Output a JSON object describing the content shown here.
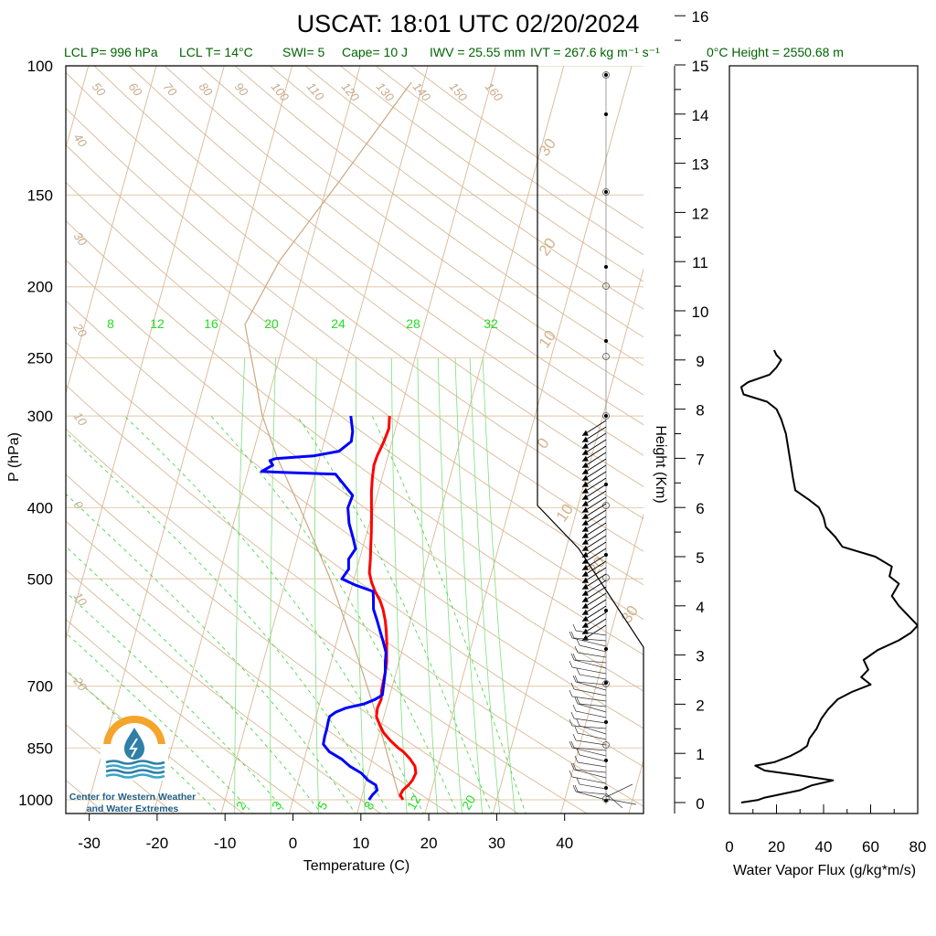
{
  "chart_data": [
    {
      "type": "line",
      "subtype": "skew-t log-p sounding",
      "title": "USCAT: 18:01 UTC 02/20/2024",
      "subtitle_items": [
        "LCL P= 996 hPa",
        "LCL T= 14°C",
        "SWI= 5",
        "Cape= 10 J",
        "IWV = 25.55 mm",
        "IVT = 267.6 kg m⁻¹ s⁻¹",
        "0°C Height = 2550.68 m"
      ],
      "xlabel": "Temperature (C)",
      "ylabel": "P (hPa)",
      "ylabel_right": "Height (Km)",
      "x_ticks": [
        "-30",
        "-20",
        "-10",
        "0",
        "10",
        "20",
        "30",
        "40"
      ],
      "y_ticks": [
        "100",
        "150",
        "200",
        "250",
        "300",
        "400",
        "500",
        "700",
        "850",
        "1000"
      ],
      "height_ticks": [
        "0",
        "1",
        "2",
        "3",
        "4",
        "5",
        "6",
        "7",
        "8",
        "9",
        "10",
        "11",
        "12",
        "13",
        "14",
        "15",
        "16"
      ],
      "mixing_ratio_labels_top": [
        "8",
        "12",
        "16",
        "20",
        "24",
        "28",
        "32"
      ],
      "mixing_ratio_labels_bottom": [
        "2",
        "3",
        "5",
        "8",
        "12",
        "20"
      ],
      "dry_adiabat_labels": [
        "50",
        "60",
        "70",
        "80",
        "90",
        "100",
        "110",
        "120",
        "130",
        "140",
        "150",
        "160"
      ],
      "isotherm_labels_left": [
        "40",
        "30",
        "20",
        "10",
        "0",
        "10",
        "20"
      ],
      "isotherm_labels_right": [
        "30",
        "20",
        "10",
        "0",
        "10",
        "20",
        "30"
      ],
      "xlim": [
        -35,
        50
      ],
      "ylim_hPa": [
        1050,
        100
      ],
      "log_y": true,
      "series": [
        {
          "color": "#ff0000",
          "points": [
            [
              1000,
              16.2
            ],
            [
              985,
              15.6
            ],
            [
              970,
              15.8
            ],
            [
              955,
              16.4
            ],
            [
              940,
              16.8
            ],
            [
              920,
              17.0
            ],
            [
              900,
              16.6
            ],
            [
              880,
              15.6
            ],
            [
              860,
              14.3
            ],
            [
              850,
              13.4
            ],
            [
              830,
              11.9
            ],
            [
              810,
              10.6
            ],
            [
              790,
              9.7
            ],
            [
              770,
              8.9
            ],
            [
              750,
              8.7
            ],
            [
              730,
              8.9
            ],
            [
              710,
              8.6
            ],
            [
              690,
              8.5
            ],
            [
              670,
              8.4
            ],
            [
              650,
              8.2
            ],
            [
              630,
              7.8
            ],
            [
              610,
              7.4
            ],
            [
              590,
              6.9
            ],
            [
              570,
              6.3
            ],
            [
              550,
              5.5
            ],
            [
              535,
              4.7
            ],
            [
              520,
              3.6
            ],
            [
              505,
              2.7
            ],
            [
              490,
              2.0
            ],
            [
              470,
              1.6
            ],
            [
              450,
              1.1
            ],
            [
              430,
              0.6
            ],
            [
              410,
              0.0
            ],
            [
              395,
              -0.5
            ],
            [
              380,
              -1.0
            ],
            [
              365,
              -1.4
            ],
            [
              350,
              -1.7
            ],
            [
              340,
              -1.6
            ],
            [
              325,
              -1.2
            ],
            [
              312,
              -1.0
            ],
            [
              300,
              -1.4
            ]
          ]
        },
        {
          "color": "#0000ff",
          "points": [
            [
              1000,
              11.2
            ],
            [
              985,
              11.5
            ],
            [
              970,
              12.0
            ],
            [
              955,
              11.6
            ],
            [
              940,
              10.2
            ],
            [
              920,
              9.0
            ],
            [
              900,
              7.0
            ],
            [
              880,
              5.5
            ],
            [
              860,
              3.4
            ],
            [
              840,
              2.2
            ],
            [
              820,
              2.1
            ],
            [
              800,
              2.1
            ],
            [
              780,
              2.0
            ],
            [
              770,
              2.0
            ],
            [
              760,
              2.7
            ],
            [
              750,
              4.0
            ],
            [
              740,
              6.6
            ],
            [
              730,
              8.0
            ],
            [
              720,
              8.9
            ],
            [
              710,
              8.8
            ],
            [
              690,
              8.6
            ],
            [
              670,
              8.4
            ],
            [
              650,
              8.0
            ],
            [
              630,
              7.7
            ],
            [
              610,
              6.9
            ],
            [
              590,
              6.0
            ],
            [
              570,
              5.1
            ],
            [
              550,
              4.1
            ],
            [
              530,
              3.6
            ],
            [
              520,
              3.3
            ],
            [
              510,
              0.5
            ],
            [
              500,
              -1.8
            ],
            [
              485,
              -1.2
            ],
            [
              470,
              -1.6
            ],
            [
              455,
              -1.0
            ],
            [
              440,
              -1.8
            ],
            [
              420,
              -3.0
            ],
            [
              400,
              -3.8
            ],
            [
              385,
              -3.6
            ],
            [
              370,
              -5.6
            ],
            [
              360,
              -7.0
            ],
            [
              358,
              -15.0
            ],
            [
              357,
              -18.0
            ],
            [
              350,
              -16.6
            ],
            [
              345,
              -17.2
            ],
            [
              343,
              -16.5
            ],
            [
              340,
              -11.0
            ],
            [
              335,
              -7.4
            ],
            [
              325,
              -6.0
            ],
            [
              315,
              -6.2
            ],
            [
              305,
              -6.8
            ],
            [
              300,
              -7.1
            ]
          ]
        }
      ],
      "wind_flux_profile": {
        "xlabel": "Water Vapor Flux (g/kg*m/s)",
        "x_ticks": [
          "0",
          "20",
          "40",
          "60",
          "80"
        ],
        "xlim": [
          0,
          80
        ],
        "ylim_km": [
          -0.3,
          16.5
        ],
        "points": [
          [
            0.0,
            5
          ],
          [
            0.05,
            12
          ],
          [
            0.1,
            15
          ],
          [
            0.25,
            30
          ],
          [
            0.35,
            35
          ],
          [
            0.45,
            44
          ],
          [
            0.55,
            30
          ],
          [
            0.65,
            15
          ],
          [
            0.75,
            11
          ],
          [
            0.82,
            19
          ],
          [
            0.95,
            26
          ],
          [
            1.05,
            30
          ],
          [
            1.15,
            33
          ],
          [
            1.3,
            34
          ],
          [
            1.5,
            37
          ],
          [
            1.7,
            39
          ],
          [
            1.9,
            42
          ],
          [
            2.1,
            46
          ],
          [
            2.25,
            52
          ],
          [
            2.4,
            60
          ],
          [
            2.55,
            56
          ],
          [
            2.7,
            59
          ],
          [
            2.9,
            57
          ],
          [
            3.1,
            63
          ],
          [
            3.3,
            72
          ],
          [
            3.45,
            77
          ],
          [
            3.6,
            80
          ],
          [
            3.8,
            76
          ],
          [
            4.0,
            72
          ],
          [
            4.2,
            69
          ],
          [
            4.45,
            72
          ],
          [
            4.6,
            68
          ],
          [
            4.8,
            69
          ],
          [
            5.0,
            62
          ],
          [
            5.2,
            48
          ],
          [
            5.4,
            45
          ],
          [
            5.6,
            41
          ],
          [
            5.8,
            40
          ],
          [
            6.0,
            38
          ],
          [
            6.15,
            34
          ],
          [
            6.35,
            28
          ],
          [
            6.6,
            27
          ],
          [
            6.9,
            26
          ],
          [
            7.2,
            25
          ],
          [
            7.5,
            24
          ],
          [
            7.8,
            22
          ],
          [
            8.0,
            20
          ],
          [
            8.15,
            16
          ],
          [
            8.3,
            6
          ],
          [
            8.45,
            5
          ],
          [
            8.55,
            8
          ],
          [
            8.7,
            17
          ],
          [
            8.85,
            20
          ],
          [
            9.0,
            22
          ],
          [
            9.1,
            20
          ],
          [
            9.2,
            19
          ]
        ]
      }
    }
  ],
  "logo": {
    "line1": "Center for Western Weather",
    "line2": "and Water Extremes",
    "color_orange": "#f4a52a",
    "color_blue": "#2f7fa6",
    "color_teal": "#3aa6c6"
  }
}
